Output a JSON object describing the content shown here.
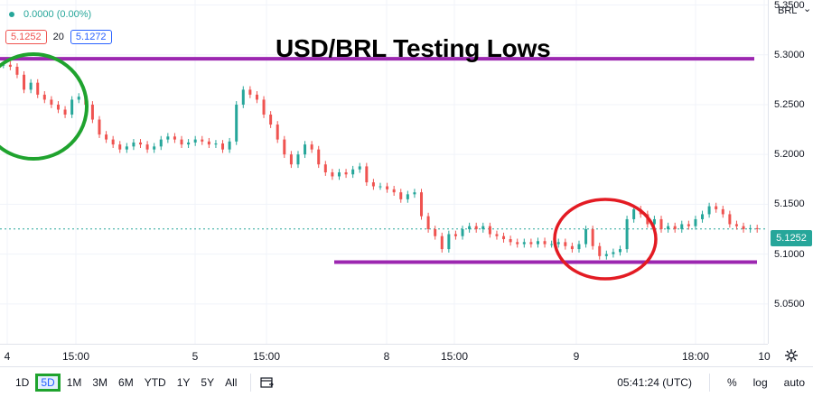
{
  "chart": {
    "title": "USD/BRL Testing Lows",
    "currency": "BRL",
    "legend": {
      "change": "0.0000 (0.00%)",
      "bid": "5.1252",
      "spread": "20",
      "ask": "5.1272"
    },
    "last_price": "5.1252"
  },
  "chart_data": {
    "type": "line",
    "title": "USD/BRL Testing Lows",
    "ylim": [
      5.01,
      5.355
    ],
    "y_ticks": [
      "5.3500",
      "5.3000",
      "5.2500",
      "5.2000",
      "5.1500",
      "5.1000",
      "5.0500"
    ],
    "x_ticks": [
      "4",
      "15:00",
      "5",
      "15:00",
      "8",
      "15:00",
      "9",
      "18:00",
      "10"
    ],
    "series": [
      {
        "values": [
          5.29,
          5.288,
          5.28,
          5.265,
          5.272,
          5.26,
          5.255,
          5.25,
          5.245,
          5.24,
          5.255,
          5.258,
          5.25,
          5.235,
          5.22,
          5.215,
          5.21,
          5.205,
          5.208,
          5.212,
          5.21,
          5.205,
          5.208,
          5.215,
          5.218,
          5.215,
          5.21,
          5.212,
          5.215,
          5.213,
          5.21,
          5.211,
          5.205,
          5.213,
          5.25,
          5.265,
          5.26,
          5.255,
          5.24,
          5.23,
          5.215,
          5.2,
          5.19,
          5.2,
          5.21,
          5.205,
          5.19,
          5.182,
          5.178,
          5.182,
          5.18,
          5.185,
          5.188,
          5.172,
          5.168,
          5.168,
          5.165,
          5.162,
          5.155,
          5.16,
          5.162,
          5.138,
          5.125,
          5.118,
          5.105,
          5.12,
          5.118,
          5.125,
          5.128,
          5.125,
          5.128,
          5.12,
          5.118,
          5.115,
          5.112,
          5.11,
          5.112,
          5.11,
          5.113,
          5.11,
          5.11,
          5.112,
          5.108,
          5.105,
          5.11,
          5.125,
          5.108,
          5.098,
          5.1,
          5.102,
          5.105,
          5.135,
          5.145,
          5.14,
          5.13,
          5.135,
          5.125,
          5.128,
          5.125,
          5.13,
          5.128,
          5.135,
          5.14,
          5.148,
          5.145,
          5.14,
          5.13,
          5.128,
          5.125,
          5.126,
          5.125
        ]
      }
    ],
    "annotations": {
      "resistance": 5.296,
      "support": 5.092,
      "current": 5.1252
    },
    "colors": {
      "up": "#26a69a",
      "down": "#ef5350",
      "line": "#9c27b0",
      "circle_green": "#1fa32e",
      "circle_red": "#e31b23"
    }
  },
  "toolbar": {
    "timeframes": [
      "1D",
      "5D",
      "1M",
      "3M",
      "6M",
      "YTD",
      "1Y",
      "5Y",
      "All"
    ],
    "active": "5D",
    "time": "05:41:24 (UTC)",
    "percent": "%",
    "log": "log",
    "auto": "auto"
  }
}
